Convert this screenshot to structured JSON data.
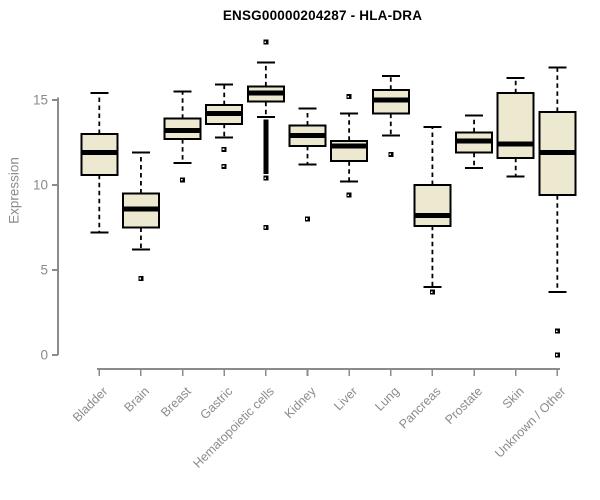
{
  "chart_data": {
    "type": "boxplot",
    "title": "ENSG00000204287 - HLA-DRA",
    "ylabel": "Expression",
    "xlabel": "",
    "yticks": [
      0,
      5,
      10,
      15
    ],
    "ylim": [
      0,
      18.8
    ],
    "grid": "off",
    "legend": "none",
    "categories": [
      "Bladder",
      "Brain",
      "Breast",
      "Gastric",
      "Hematopoietic cells",
      "Kidney",
      "Liver",
      "Lung",
      "Pancreas",
      "Prostate",
      "Skin",
      "Unknown / Other"
    ],
    "series": [
      {
        "category": "Bladder",
        "whisker_low": 7.2,
        "q1": 10.6,
        "median": 11.9,
        "q3": 13.0,
        "whisker_high": 15.4,
        "outliers": []
      },
      {
        "category": "Brain",
        "whisker_low": 6.2,
        "q1": 7.5,
        "median": 8.6,
        "q3": 9.5,
        "whisker_high": 11.9,
        "outliers": [
          4.5
        ]
      },
      {
        "category": "Breast",
        "whisker_low": 11.3,
        "q1": 12.7,
        "median": 13.2,
        "q3": 13.9,
        "whisker_high": 15.5,
        "outliers": [
          10.3
        ]
      },
      {
        "category": "Gastric",
        "whisker_low": 12.8,
        "q1": 13.6,
        "median": 14.2,
        "q3": 14.7,
        "whisker_high": 15.9,
        "outliers": [
          12.1,
          11.1
        ]
      },
      {
        "category": "Hematopoietic cells",
        "whisker_low": 14.0,
        "q1": 14.9,
        "median": 15.4,
        "q3": 15.8,
        "whisker_high": 17.2,
        "outliers": [
          18.4,
          10.4,
          7.5
        ],
        "dense_outliers": {
          "value_from": 13.7,
          "value_to": 10.8,
          "count": 26
        }
      },
      {
        "category": "Kidney",
        "whisker_low": 11.2,
        "q1": 12.3,
        "median": 12.9,
        "q3": 13.5,
        "whisker_high": 14.5,
        "outliers": [
          8.0
        ]
      },
      {
        "category": "Liver",
        "whisker_low": 10.2,
        "q1": 11.4,
        "median": 12.3,
        "q3": 12.6,
        "whisker_high": 14.2,
        "outliers": [
          15.2,
          9.4
        ]
      },
      {
        "category": "Lung",
        "whisker_low": 12.9,
        "q1": 14.2,
        "median": 15.0,
        "q3": 15.6,
        "whisker_high": 16.4,
        "outliers": [
          11.8
        ]
      },
      {
        "category": "Pancreas",
        "whisker_low": 4.0,
        "q1": 7.6,
        "median": 8.2,
        "q3": 10.0,
        "whisker_high": 13.4,
        "outliers": [
          3.7
        ]
      },
      {
        "category": "Prostate",
        "whisker_low": 11.0,
        "q1": 11.9,
        "median": 12.6,
        "q3": 13.1,
        "whisker_high": 14.1,
        "outliers": []
      },
      {
        "category": "Skin",
        "whisker_low": 10.5,
        "q1": 11.6,
        "median": 12.4,
        "q3": 15.4,
        "whisker_high": 16.3,
        "outliers": []
      },
      {
        "category": "Unknown / Other",
        "whisker_low": 3.7,
        "q1": 9.4,
        "median": 11.9,
        "q3": 14.3,
        "whisker_high": 16.9,
        "outliers": [
          1.4,
          0.0
        ]
      }
    ],
    "colors": {
      "box_fill": "#EDE8D0",
      "box_border": "#000000",
      "median": "#000000",
      "whisker": "#000000",
      "outlier": "#000000",
      "axis": "#8b8b8b",
      "tick_label": "#8b8b8b",
      "title": "#000000",
      "background": "#ffffff"
    }
  }
}
